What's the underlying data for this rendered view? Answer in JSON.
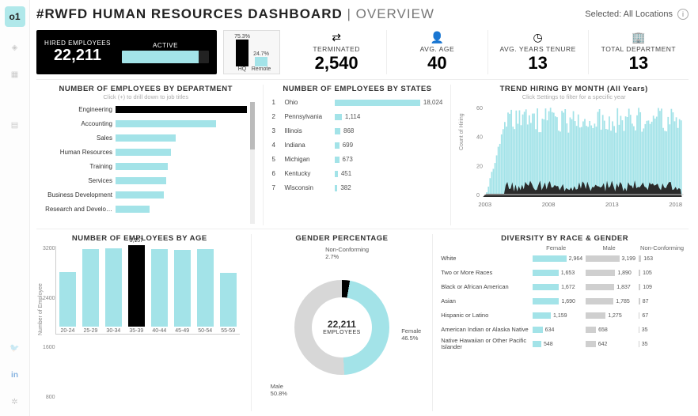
{
  "colors": {
    "accent": "#a3e3e8",
    "dark": "#000000",
    "grey": "#d7d7d7",
    "text": "#333333"
  },
  "header": {
    "title_prefix": "#RWFD HUMAN RESOURCES DASHBOARD",
    "title_section": "OVERVIEW",
    "selected_label": "Selected:",
    "selected_value": "All Locations"
  },
  "kpi_hired": {
    "label": "HIRED EMPLOYEES",
    "value": "22,211",
    "active_label": "ACTIVE",
    "active_pct": 88
  },
  "hq_remote": {
    "hq_label": "HQ",
    "hq_pct": "75.3%",
    "remote_label": "Remote",
    "remote_pct": "24.7%",
    "hq_h": 34,
    "remote_h": 12
  },
  "kpis": [
    {
      "icon": "⇄",
      "label": "TERMINATED",
      "value": "2,540"
    },
    {
      "icon": "👤",
      "label": "AVG. AGE",
      "value": "40"
    },
    {
      "icon": "◷",
      "label": "AVG. YEARS TENURE",
      "value": "13"
    },
    {
      "icon": "🏢",
      "label": "TOTAL DEPARTMENT",
      "value": "13"
    }
  ],
  "dept": {
    "title": "NUMBER OF EMPLOYEES BY DEPARTMENT",
    "subtitle": "Click (+) to drill down to job titles",
    "max": 6500,
    "rows": [
      {
        "label": "Engineering",
        "value": 6300,
        "highlight": true
      },
      {
        "label": "Accounting",
        "value": 3100
      },
      {
        "label": "Sales",
        "value": 1850
      },
      {
        "label": "Human Resources",
        "value": 1700
      },
      {
        "label": "Training",
        "value": 1600
      },
      {
        "label": "Services",
        "value": 1550
      },
      {
        "label": "Business Development",
        "value": 1500
      },
      {
        "label": "Research and Develo…",
        "value": 1050
      }
    ]
  },
  "states": {
    "title": "NUMBER OF EMPLOYEES BY STATES",
    "max": 18024,
    "rows": [
      {
        "rank": "1",
        "label": "Ohio",
        "value": "18,024",
        "n": 18024
      },
      {
        "rank": "2",
        "label": "Pennsylvania",
        "value": "1,114",
        "n": 1114
      },
      {
        "rank": "3",
        "label": "Illinois",
        "value": "868",
        "n": 868
      },
      {
        "rank": "4",
        "label": "Indiana",
        "value": "699",
        "n": 699
      },
      {
        "rank": "5",
        "label": "Michigan",
        "value": "673",
        "n": 673
      },
      {
        "rank": "6",
        "label": "Kentucky",
        "value": "451",
        "n": 451
      },
      {
        "rank": "7",
        "label": "Wisconsin",
        "value": "382",
        "n": 382
      }
    ]
  },
  "trend": {
    "title": "TREND HIRING BY MONTH (All Years)",
    "subtitle": "Click Settings to filter for a specific year",
    "ylabel": "Count of Hiring",
    "ymax": 60,
    "yticks": [
      "60",
      "40",
      "20",
      "0"
    ],
    "xlabels": [
      "2003",
      "2008",
      "2013",
      "2018"
    ]
  },
  "age": {
    "title": "NUMBER OF EMPLOYEES BY AGE",
    "ylabel": "Number of Employee",
    "ymax": 3300,
    "yticks": [
      "3200",
      "2400",
      "1600",
      "800"
    ],
    "max_label": "3,157",
    "bars": [
      {
        "label": "20-24",
        "value": 2100
      },
      {
        "label": "25-29",
        "value": 3000
      },
      {
        "label": "30-34",
        "value": 3020
      },
      {
        "label": "35-39",
        "value": 3157,
        "max": true
      },
      {
        "label": "40-44",
        "value": 3000
      },
      {
        "label": "45-49",
        "value": 2960
      },
      {
        "label": "50-54",
        "value": 3000
      },
      {
        "label": "55-59",
        "value": 2080
      }
    ]
  },
  "gender": {
    "title": "GENDER PERCENTAGE",
    "center_value": "22,211",
    "center_label": "EMPLOYEES",
    "segments": {
      "nonconforming": {
        "label": "Non-Conforming",
        "pct": "2.7%"
      },
      "female": {
        "label": "Female",
        "pct": "46.5%"
      },
      "male": {
        "label": "Male",
        "pct": "50.8%"
      }
    }
  },
  "diversity": {
    "title": "DIVERSITY BY RACE & GENDER",
    "cols": [
      "Female",
      "Male",
      "Non-Conforming"
    ],
    "max": 3200,
    "rows": [
      {
        "label": "White",
        "f": "2,964",
        "fn": 2964,
        "m": "3,199",
        "mn": 3199,
        "n": "163",
        "nn": 163
      },
      {
        "label": "Two or More Races",
        "f": "1,653",
        "fn": 1653,
        "m": "1,890",
        "mn": 1890,
        "n": "105",
        "nn": 105
      },
      {
        "label": "Black or African American",
        "f": "1,672",
        "fn": 1672,
        "m": "1,837",
        "mn": 1837,
        "n": "109",
        "nn": 109
      },
      {
        "label": "Asian",
        "f": "1,690",
        "fn": 1690,
        "m": "1,785",
        "mn": 1785,
        "n": "87",
        "nn": 87
      },
      {
        "label": "Hispanic or Latino",
        "f": "1,159",
        "fn": 1159,
        "m": "1,275",
        "mn": 1275,
        "n": "67",
        "nn": 67
      },
      {
        "label": "American Indian or Alaska Native",
        "f": "634",
        "fn": 634,
        "m": "658",
        "mn": 658,
        "n": "35",
        "nn": 35
      },
      {
        "label": "Native Hawaiian or Other Pacific Islander",
        "f": "548",
        "fn": 548,
        "m": "642",
        "mn": 642,
        "n": "35",
        "nn": 35
      }
    ]
  }
}
